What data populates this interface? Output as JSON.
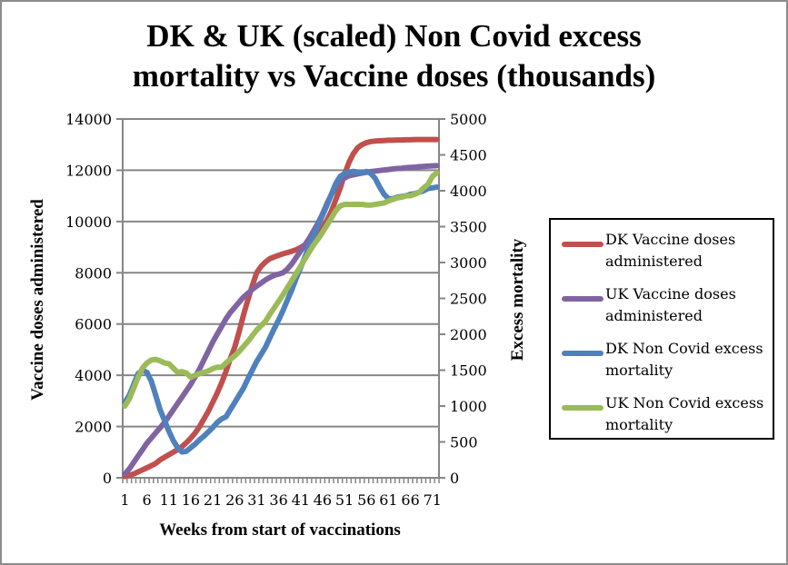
{
  "chart_data": {
    "type": "line",
    "title": "DK & UK (scaled) Non Covid excess mortality vs Vaccine doses (thousands)",
    "title_lines": [
      "DK & UK (scaled) Non Covid excess",
      "mortality vs Vaccine doses (thousands)"
    ],
    "xlabel": "Weeks from start of vaccinations",
    "ylabel": "Vaccine doses administered",
    "y2label": "Excess mortality",
    "ylim": [
      0,
      14000
    ],
    "y2lim": [
      0,
      5000
    ],
    "yticks": [
      0,
      2000,
      4000,
      6000,
      8000,
      10000,
      12000,
      14000
    ],
    "y2ticks": [
      0,
      500,
      1000,
      1500,
      2000,
      2500,
      3000,
      3500,
      4000,
      4500,
      5000
    ],
    "x_count": 72,
    "xtick_labels": [
      "1",
      "6",
      "11",
      "16",
      "21",
      "26",
      "31",
      "36",
      "41",
      "46",
      "51",
      "56",
      "61",
      "66",
      "71"
    ],
    "grid": true,
    "legend_position": "right",
    "series": [
      {
        "name": "DK Vaccine doses administered",
        "axis": "primary",
        "color": "#c0504d",
        "values": [
          50,
          100,
          150,
          230,
          310,
          390,
          470,
          560,
          700,
          800,
          900,
          1000,
          1100,
          1220,
          1370,
          1550,
          1750,
          2000,
          2300,
          2600,
          2950,
          3300,
          3700,
          4150,
          4650,
          5100,
          5700,
          6350,
          6950,
          7500,
          8000,
          8250,
          8420,
          8550,
          8620,
          8680,
          8740,
          8790,
          8840,
          8900,
          8990,
          9090,
          9200,
          9350,
          9520,
          9750,
          10050,
          10400,
          10850,
          11300,
          11850,
          12300,
          12650,
          12880,
          13000,
          13080,
          13120,
          13140,
          13150,
          13160,
          13170,
          13170,
          13180,
          13180,
          13190,
          13190,
          13200,
          13200,
          13200,
          13200,
          13200,
          13200
        ]
      },
      {
        "name": "UK Vaccine doses administered",
        "axis": "primary",
        "color": "#8064a2",
        "values": [
          150,
          350,
          600,
          850,
          1100,
          1350,
          1550,
          1750,
          1950,
          2150,
          2400,
          2650,
          2900,
          3150,
          3400,
          3650,
          3950,
          4250,
          4600,
          4950,
          5300,
          5600,
          5900,
          6200,
          6450,
          6650,
          6850,
          7050,
          7200,
          7350,
          7480,
          7600,
          7720,
          7820,
          7900,
          7950,
          8000,
          8150,
          8350,
          8600,
          8850,
          9100,
          9350,
          9650,
          9950,
          10300,
          10700,
          11050,
          11350,
          11550,
          11700,
          11780,
          11820,
          11860,
          11890,
          11920,
          11950,
          11970,
          11990,
          12010,
          12030,
          12050,
          12070,
          12080,
          12100,
          12110,
          12120,
          12140,
          12150,
          12160,
          12170,
          12180
        ]
      },
      {
        "name": "DK Non Covid excess mortality",
        "axis": "secondary",
        "color": "#4f81bd",
        "values": [
          1050,
          1150,
          1300,
          1450,
          1500,
          1470,
          1350,
          1150,
          950,
          800,
          650,
          520,
          420,
          360,
          370,
          420,
          470,
          530,
          580,
          640,
          700,
          770,
          820,
          850,
          950,
          1050,
          1150,
          1250,
          1380,
          1500,
          1620,
          1720,
          1820,
          1950,
          2080,
          2200,
          2330,
          2480,
          2620,
          2780,
          2930,
          3080,
          3240,
          3380,
          3520,
          3660,
          3800,
          3950,
          4100,
          4200,
          4240,
          4260,
          4270,
          4260,
          4250,
          4270,
          4240,
          4170,
          4050,
          3950,
          3890,
          3890,
          3910,
          3920,
          3930,
          3950,
          3960,
          3980,
          4000,
          4030,
          4040,
          4050
        ]
      },
      {
        "name": "UK Non Covid excess mortality",
        "axis": "secondary",
        "color": "#9bbb59",
        "values": [
          1000,
          1100,
          1250,
          1400,
          1530,
          1600,
          1640,
          1650,
          1630,
          1600,
          1590,
          1530,
          1470,
          1480,
          1460,
          1400,
          1430,
          1450,
          1470,
          1490,
          1520,
          1540,
          1540,
          1600,
          1650,
          1700,
          1760,
          1830,
          1900,
          1980,
          2060,
          2120,
          2180,
          2280,
          2370,
          2460,
          2550,
          2650,
          2750,
          2850,
          2950,
          3050,
          3150,
          3250,
          3330,
          3420,
          3520,
          3620,
          3720,
          3790,
          3810,
          3810,
          3810,
          3810,
          3810,
          3800,
          3800,
          3810,
          3820,
          3830,
          3860,
          3880,
          3900,
          3910,
          3930,
          3930,
          3950,
          3980,
          4040,
          4090,
          4200,
          4250
        ]
      }
    ]
  },
  "legend": {
    "items": [
      {
        "label": "DK Vaccine doses administered",
        "color": "#c0504d"
      },
      {
        "label": "UK Vaccine doses administered",
        "color": "#8064a2"
      },
      {
        "label": "DK Non Covid excess mortality",
        "color": "#4f81bd"
      },
      {
        "label": "UK Non Covid excess mortality",
        "color": "#9bbb59"
      }
    ]
  }
}
